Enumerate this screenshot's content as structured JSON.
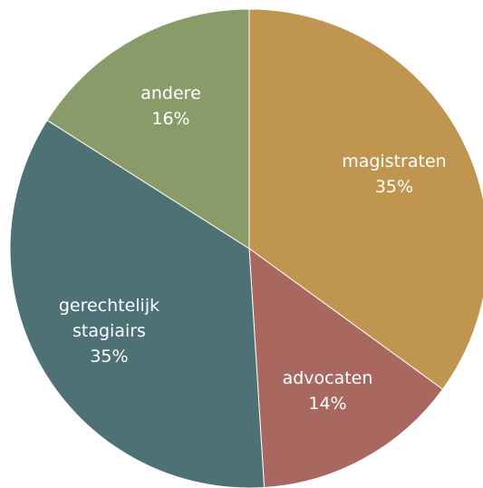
{
  "chart_data": {
    "type": "pie",
    "categories": [
      "magistraten",
      "advocaten",
      "gerechtelijk stagiairs",
      "andere"
    ],
    "values": [
      35,
      14,
      35,
      16
    ],
    "value_labels": [
      "35%",
      "14%",
      "35%",
      "16%"
    ],
    "colors": [
      "#c0954f",
      "#a86860",
      "#4e7176",
      "#8a9b6a"
    ]
  }
}
